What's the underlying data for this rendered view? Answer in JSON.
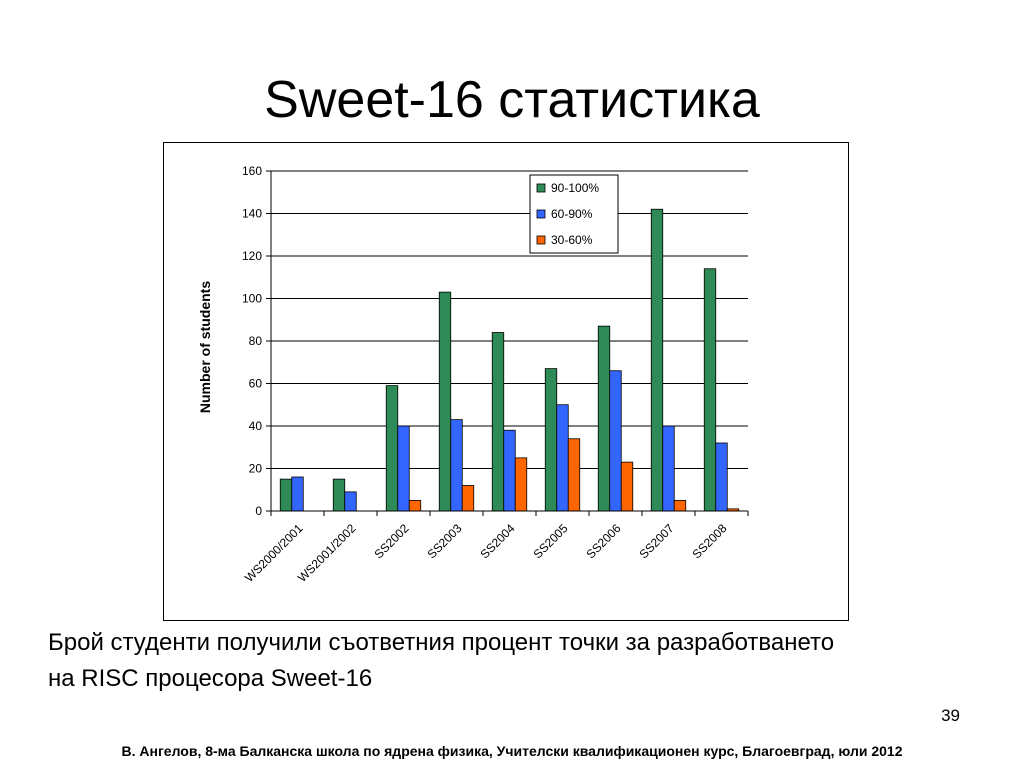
{
  "slide": {
    "title": "Sweet-16 статистика",
    "caption_line1": "Брой студенти получили съответния процент точки за разработването",
    "caption_line2": "на RISC процесора Sweet-16",
    "page_number": "39",
    "footer": "В. Ангелов, 8-ма Балканска школа по ядрена физика, Учителски квалификационен курс, Благоевград, юли 2012"
  },
  "chart_data": {
    "type": "bar",
    "title": "",
    "xlabel": "",
    "ylabel": "Number of students",
    "ylim": [
      0,
      160
    ],
    "yticks": [
      0,
      20,
      40,
      60,
      80,
      100,
      120,
      140,
      160
    ],
    "grid": true,
    "legend_position": "top-right",
    "categories": [
      "WS2000/2001",
      "WS2001/2002",
      "SS2002",
      "SS2003",
      "SS2004",
      "SS2005",
      "SS2006",
      "SS2007",
      "SS2008"
    ],
    "series": [
      {
        "name": "90-100%",
        "color": "#2e8b57",
        "values": [
          15,
          15,
          59,
          103,
          84,
          67,
          87,
          142,
          114
        ]
      },
      {
        "name": "60-90%",
        "color": "#3366ff",
        "values": [
          16,
          9,
          40,
          43,
          38,
          50,
          66,
          40,
          32
        ]
      },
      {
        "name": "30-60%",
        "color": "#ff6600",
        "values": [
          0,
          0,
          5,
          12,
          25,
          34,
          23,
          5,
          1
        ]
      }
    ]
  }
}
